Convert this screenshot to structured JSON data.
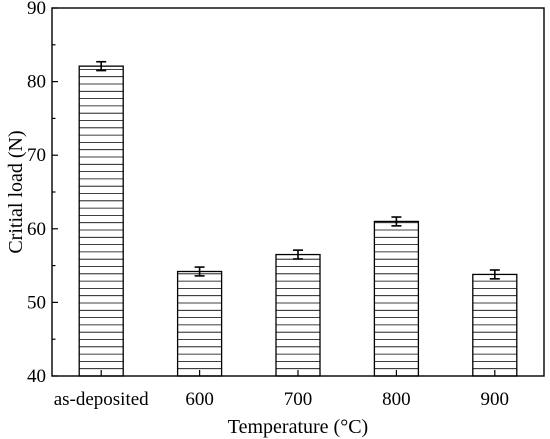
{
  "chart_data": {
    "type": "bar",
    "title": "",
    "xlabel": "Temperature (°C)",
    "ylabel": "Critial load (N)",
    "categories": [
      "as-deposited",
      "600",
      "700",
      "800",
      "900"
    ],
    "values": [
      82.1,
      54.2,
      56.5,
      61.0,
      53.8
    ],
    "errors": [
      0.6,
      0.6,
      0.6,
      0.6,
      0.6
    ],
    "ylim": [
      40,
      90
    ],
    "yticks": [
      40,
      50,
      60,
      70,
      80,
      90
    ],
    "grid": false,
    "legend": "none",
    "bar_pattern": "horizontal-hatch",
    "colors": {
      "line": "#000000",
      "background": "#ffffff"
    }
  }
}
